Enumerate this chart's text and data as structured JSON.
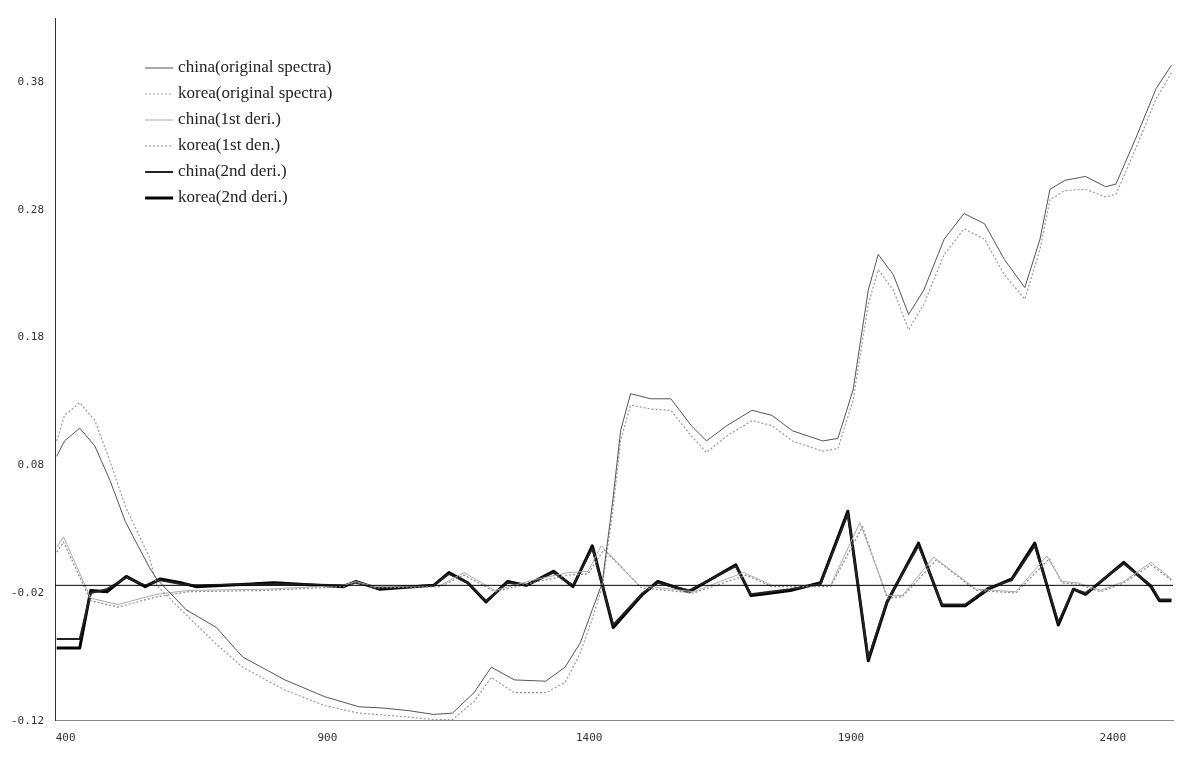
{
  "chart_data": {
    "type": "line",
    "xlim": [
      380,
      2515
    ],
    "xticks": [
      400,
      900,
      1400,
      1900,
      2400
    ],
    "ylim": [
      -0.12,
      0.43
    ],
    "yticks": [
      -0.12,
      -0.02,
      0.08,
      0.18,
      0.28,
      0.38
    ],
    "grid": false,
    "legend": "top left",
    "marker": "none",
    "ref_lines": [
      {
        "axis": "y",
        "value": -0.014,
        "color": "#000000"
      }
    ],
    "series": [
      {
        "name": "china(original spectra)",
        "color": "#555555",
        "line_style": "solid",
        "x": [
          383,
          398,
          427,
          456,
          485,
          514,
          560,
          574,
          630,
          688,
          738,
          819,
          894,
          960,
          1006,
          1054,
          1103,
          1139,
          1180,
          1213,
          1257,
          1317,
          1354,
          1383,
          1406,
          1425,
          1445,
          1460,
          1479,
          1518,
          1556,
          1595,
          1624,
          1663,
          1711,
          1749,
          1788,
          1846,
          1875,
          1904,
          1933,
          1952,
          1981,
          2010,
          2039,
          2078,
          2116,
          2155,
          2193,
          2232,
          2261,
          2280,
          2309,
          2348,
          2386,
          2406,
          2444,
          2483,
          2512
        ],
        "values": [
          0.087,
          0.099,
          0.109,
          0.095,
          0.068,
          0.036,
          0,
          -0.009,
          -0.033,
          -0.047,
          -0.07,
          -0.088,
          -0.101,
          -0.109,
          -0.11,
          -0.112,
          -0.115,
          -0.114,
          -0.098,
          -0.078,
          -0.088,
          -0.089,
          -0.078,
          -0.059,
          -0.033,
          -0.012,
          0.052,
          0.107,
          0.136,
          0.132,
          0.132,
          0.111,
          0.099,
          0.111,
          0.123,
          0.119,
          0.107,
          0.099,
          0.101,
          0.139,
          0.217,
          0.245,
          0.229,
          0.198,
          0.217,
          0.257,
          0.277,
          0.269,
          0.241,
          0.219,
          0.257,
          0.296,
          0.303,
          0.306,
          0.298,
          0.3,
          0.336,
          0.375,
          0.393
        ]
      },
      {
        "name": "korea(original spectra)",
        "color": "#999999",
        "line_style": "dotted",
        "x": [
          383,
          398,
          427,
          456,
          485,
          514,
          560,
          574,
          630,
          688,
          738,
          819,
          894,
          960,
          1054,
          1103,
          1139,
          1180,
          1213,
          1257,
          1317,
          1354,
          1383,
          1406,
          1425,
          1445,
          1460,
          1479,
          1518,
          1556,
          1595,
          1624,
          1663,
          1711,
          1749,
          1788,
          1846,
          1875,
          1904,
          1933,
          1952,
          1981,
          2010,
          2039,
          2078,
          2116,
          2155,
          2193,
          2232,
          2261,
          2280,
          2309,
          2348,
          2386,
          2406,
          2444,
          2483,
          2512
        ],
        "values": [
          0.099,
          0.119,
          0.129,
          0.115,
          0.083,
          0.048,
          0.008,
          -0.014,
          -0.037,
          -0.06,
          -0.078,
          -0.096,
          -0.108,
          -0.114,
          -0.117,
          -0.119,
          -0.119,
          -0.105,
          -0.086,
          -0.098,
          -0.098,
          -0.09,
          -0.067,
          -0.04,
          -0.015,
          0.044,
          0.099,
          0.127,
          0.124,
          0.123,
          0.103,
          0.09,
          0.103,
          0.115,
          0.111,
          0.099,
          0.091,
          0.093,
          0.131,
          0.206,
          0.233,
          0.217,
          0.186,
          0.206,
          0.245,
          0.265,
          0.257,
          0.229,
          0.21,
          0.249,
          0.288,
          0.295,
          0.296,
          0.29,
          0.292,
          0.328,
          0.367,
          0.387
        ]
      },
      {
        "name": "china(1st deri.)",
        "color": "#aaaaaa",
        "line_style": "solid",
        "x": [
          383,
          396,
          448,
          500,
          574,
          634,
          782,
          931,
          954,
          991,
          1116,
          1161,
          1220,
          1302,
          1361,
          1398,
          1423,
          1495,
          1599,
          1695,
          1749,
          1861,
          1917,
          1969,
          1998,
          2058,
          2139,
          2215,
          2274,
          2303,
          2332,
          2377,
          2421,
          2473,
          2512
        ],
        "values": [
          0.016,
          0.024,
          -0.024,
          -0.029,
          -0.021,
          -0.018,
          -0.017,
          -0.014,
          -0.011,
          -0.015,
          -0.014,
          -0.004,
          -0.018,
          -0.009,
          -0.004,
          -0.003,
          0.017,
          -0.014,
          -0.019,
          -0.004,
          -0.014,
          -0.014,
          0.035,
          -0.022,
          -0.022,
          0.008,
          -0.017,
          -0.019,
          0.009,
          -0.011,
          -0.012,
          -0.018,
          -0.011,
          0.004,
          -0.009
        ]
      },
      {
        "name": "korea(1st den.)",
        "color": "#888888",
        "line_style": "dotted",
        "x": [
          383,
          396,
          448,
          500,
          574,
          634,
          782,
          931,
          954,
          991,
          1116,
          1161,
          1220,
          1302,
          1361,
          1398,
          1428,
          1500,
          1599,
          1700,
          1749,
          1861,
          1922,
          1969,
          1998,
          2063,
          2139,
          2215,
          2279,
          2303,
          2332,
          2377,
          2421,
          2473,
          2512
        ],
        "values": [
          0.012,
          0.02,
          -0.026,
          -0.031,
          -0.023,
          -0.019,
          -0.018,
          -0.015,
          -0.012,
          -0.016,
          -0.015,
          -0.006,
          -0.019,
          -0.011,
          -0.006,
          -0.005,
          0.014,
          -0.016,
          -0.02,
          -0.006,
          -0.015,
          -0.015,
          0.032,
          -0.024,
          -0.023,
          0.006,
          -0.018,
          -0.02,
          0.007,
          -0.012,
          -0.013,
          -0.019,
          -0.012,
          0.002,
          -0.01
        ]
      },
      {
        "name": "china(2nd deri.)",
        "color": "#222222",
        "line_style": "solid",
        "x": [
          383,
          396,
          427,
          448,
          479,
          516,
          552,
          581,
          620,
          649,
          798,
          931,
          954,
          999,
          1103,
          1132,
          1168,
          1203,
          1244,
          1280,
          1332,
          1369,
          1406,
          1446,
          1502,
          1531,
          1591,
          1680,
          1709,
          1784,
          1842,
          1894,
          1933,
          1969,
          2029,
          2074,
          2118,
          2162,
          2207,
          2251,
          2296,
          2325,
          2348,
          2421,
          2473,
          2489,
          2512
        ],
        "values": [
          -0.056,
          -0.056,
          -0.056,
          -0.02,
          -0.017,
          -0.008,
          -0.014,
          -0.01,
          -0.013,
          -0.014,
          -0.013,
          -0.014,
          -0.012,
          -0.016,
          -0.014,
          -0.005,
          -0.012,
          -0.026,
          -0.012,
          -0.014,
          -0.004,
          -0.014,
          0.015,
          -0.045,
          -0.02,
          -0.012,
          -0.018,
          0.001,
          -0.021,
          -0.017,
          -0.013,
          0.042,
          -0.071,
          -0.026,
          0.017,
          -0.029,
          -0.029,
          -0.016,
          -0.01,
          0.017,
          -0.043,
          -0.017,
          -0.02,
          0.003,
          -0.014,
          -0.025,
          -0.025
        ]
      },
      {
        "name": "korea(2nd deri.)",
        "color": "#000000",
        "line_style": "solid",
        "x": [
          383,
          396,
          427,
          448,
          479,
          516,
          552,
          581,
          620,
          649,
          798,
          931,
          954,
          999,
          1103,
          1132,
          1168,
          1203,
          1244,
          1280,
          1332,
          1369,
          1406,
          1446,
          1502,
          1531,
          1591,
          1680,
          1709,
          1784,
          1842,
          1894,
          1933,
          1969,
          2029,
          2074,
          2118,
          2162,
          2207,
          2251,
          2296,
          2325,
          2348,
          2421,
          2473,
          2489,
          2512
        ],
        "values": [
          -0.063,
          -0.063,
          -0.063,
          -0.018,
          -0.019,
          -0.007,
          -0.015,
          -0.009,
          -0.012,
          -0.015,
          -0.012,
          -0.015,
          -0.011,
          -0.017,
          -0.014,
          -0.004,
          -0.012,
          -0.027,
          -0.011,
          -0.014,
          -0.003,
          -0.015,
          0.017,
          -0.047,
          -0.021,
          -0.011,
          -0.019,
          0.002,
          -0.022,
          -0.018,
          -0.012,
          0.044,
          -0.073,
          -0.027,
          0.019,
          -0.03,
          -0.03,
          -0.017,
          -0.009,
          0.019,
          -0.045,
          -0.017,
          -0.021,
          0.004,
          -0.015,
          -0.026,
          -0.026
        ]
      }
    ]
  }
}
